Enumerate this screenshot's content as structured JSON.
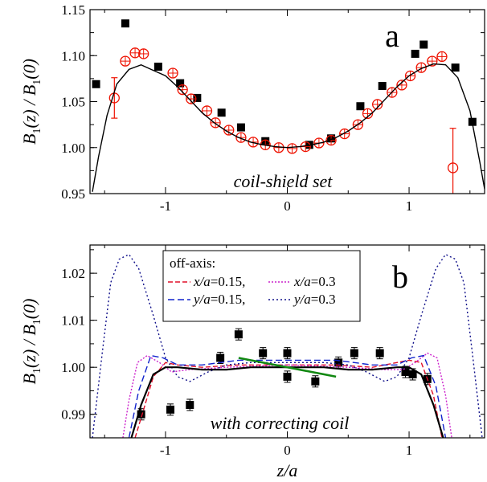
{
  "chart_data": [
    {
      "panel_label": "a",
      "type": "scatter",
      "annotation": "coil-shield set",
      "ylabel": "B1(z) / B1(0)",
      "xlabel": "",
      "xlim": [
        -1.62,
        1.62
      ],
      "ylim": [
        0.95,
        1.15
      ],
      "xticks": [
        -1,
        0,
        1
      ],
      "yticks": [
        0.95,
        1.0,
        1.05,
        1.1,
        1.15
      ],
      "ytick_labels": [
        "0.95",
        "1.00",
        "1.05",
        "1.10",
        "1.15"
      ],
      "grid": false,
      "series": [
        {
          "kind": "squares",
          "color": "#000000",
          "points": [
            [
              -1.57,
              1.069
            ],
            [
              -1.33,
              1.135
            ],
            [
              -1.06,
              1.088
            ],
            [
              -0.88,
              1.07
            ],
            [
              -0.74,
              1.054
            ],
            [
              -0.54,
              1.038
            ],
            [
              -0.38,
              1.022
            ],
            [
              -0.18,
              1.007
            ],
            [
              0.18,
              1.003
            ],
            [
              0.36,
              1.01
            ],
            [
              0.6,
              1.045
            ],
            [
              0.78,
              1.067
            ],
            [
              1.05,
              1.102
            ],
            [
              1.12,
              1.112
            ],
            [
              1.38,
              1.087
            ],
            [
              1.52,
              1.028
            ]
          ]
        },
        {
          "kind": "open-circles",
          "color": "#ee1100",
          "points": [
            [
              -1.42,
              1.054
            ],
            [
              -1.33,
              1.094
            ],
            [
              -1.25,
              1.103
            ],
            [
              -1.18,
              1.102
            ],
            [
              -0.94,
              1.081
            ],
            [
              -0.86,
              1.063
            ],
            [
              -0.79,
              1.053
            ],
            [
              -0.66,
              1.04
            ],
            [
              -0.59,
              1.027
            ],
            [
              -0.48,
              1.019
            ],
            [
              -0.38,
              1.011
            ],
            [
              -0.28,
              1.006
            ],
            [
              -0.18,
              1.003
            ],
            [
              -0.07,
              1.0
            ],
            [
              0.04,
              0.999
            ],
            [
              0.15,
              1.001
            ],
            [
              0.26,
              1.005
            ],
            [
              0.36,
              1.008
            ],
            [
              0.47,
              1.015
            ],
            [
              0.58,
              1.025
            ],
            [
              0.66,
              1.037
            ],
            [
              0.74,
              1.047
            ],
            [
              0.86,
              1.06
            ],
            [
              0.94,
              1.068
            ],
            [
              1.01,
              1.078
            ],
            [
              1.1,
              1.087
            ],
            [
              1.19,
              1.094
            ],
            [
              1.27,
              1.099
            ],
            [
              1.36,
              0.978
            ]
          ],
          "errorbars": [
            [
              -1.42,
              0.022
            ],
            [
              1.36,
              0.043
            ]
          ]
        },
        {
          "kind": "line",
          "color": "#000000",
          "points": [
            [
              -1.6,
              0.952
            ],
            [
              -1.55,
              0.99
            ],
            [
              -1.48,
              1.035
            ],
            [
              -1.4,
              1.069
            ],
            [
              -1.3,
              1.085
            ],
            [
              -1.2,
              1.09
            ],
            [
              -1.1,
              1.084
            ],
            [
              -1.0,
              1.078
            ],
            [
              -0.9,
              1.066
            ],
            [
              -0.8,
              1.052
            ],
            [
              -0.7,
              1.038
            ],
            [
              -0.6,
              1.027
            ],
            [
              -0.5,
              1.018
            ],
            [
              -0.4,
              1.011
            ],
            [
              -0.3,
              1.006
            ],
            [
              -0.2,
              1.003
            ],
            [
              -0.1,
              1.001
            ],
            [
              0.0,
              1.0
            ],
            [
              0.1,
              1.001
            ],
            [
              0.2,
              1.003
            ],
            [
              0.3,
              1.006
            ],
            [
              0.4,
              1.011
            ],
            [
              0.5,
              1.018
            ],
            [
              0.6,
              1.027
            ],
            [
              0.7,
              1.038
            ],
            [
              0.8,
              1.052
            ],
            [
              0.9,
              1.066
            ],
            [
              1.0,
              1.078
            ],
            [
              1.1,
              1.086
            ],
            [
              1.2,
              1.091
            ],
            [
              1.3,
              1.09
            ],
            [
              1.4,
              1.076
            ],
            [
              1.5,
              1.04
            ],
            [
              1.58,
              0.985
            ],
            [
              1.62,
              0.955
            ]
          ]
        }
      ]
    },
    {
      "panel_label": "b",
      "type": "scatter",
      "annotation": "with correcting coil",
      "ylabel": "B1(z) / B1(0)",
      "xlabel": "z/a",
      "xlim": [
        -1.62,
        1.62
      ],
      "ylim": [
        0.985,
        1.026
      ],
      "xticks": [
        -1,
        0,
        1
      ],
      "yticks": [
        0.99,
        1.0,
        1.01,
        1.02
      ],
      "ytick_labels": [
        "0.99",
        "1.00",
        "1.01",
        "1.02"
      ],
      "grid": false,
      "legend": {
        "title": "off-axis:",
        "placement": "top-left",
        "entries": [
          {
            "x_prefix": "x/a",
            "value": "=0.15,",
            "color": "#e0102a",
            "dash": "6,3"
          },
          {
            "x_prefix": "x/a",
            "value": "=0.3",
            "color": "#cc22cc",
            "dash": "2,2"
          },
          {
            "x_prefix": "y/a",
            "value": "=0.15,",
            "color": "#1022cc",
            "dash": "8,4"
          },
          {
            "x_prefix": "y/a",
            "value": "=0.3",
            "color": "#10108a",
            "dash": "2,3"
          }
        ]
      },
      "series": [
        {
          "kind": "squares",
          "color": "#000000",
          "points": [
            [
              -1.2,
              0.99
            ],
            [
              -0.96,
              0.991
            ],
            [
              -0.8,
              0.992
            ],
            [
              -0.55,
              1.002
            ],
            [
              -0.4,
              1.007
            ],
            [
              -0.2,
              1.003
            ],
            [
              0.0,
              1.003
            ],
            [
              0.0,
              0.998
            ],
            [
              0.23,
              0.997
            ],
            [
              0.42,
              1.001
            ],
            [
              0.55,
              1.003
            ],
            [
              0.76,
              1.003
            ],
            [
              0.97,
              0.999
            ],
            [
              1.03,
              0.9985
            ],
            [
              1.15,
              0.9975
            ]
          ],
          "errorbar": 0.0012
        },
        {
          "kind": "line",
          "name_ref": 0,
          "color": "#e0102a",
          "dash": "6,3",
          "points": [
            [
              -1.25,
              0.985
            ],
            [
              -1.18,
              0.991
            ],
            [
              -1.1,
              0.998
            ],
            [
              -1.0,
              1.001
            ],
            [
              -0.9,
              1.0005
            ],
            [
              -0.7,
              1.0
            ],
            [
              -0.4,
              1.0005
            ],
            [
              0.0,
              1.0005
            ],
            [
              0.4,
              1.0005
            ],
            [
              0.7,
              1.0
            ],
            [
              0.9,
              1.001
            ],
            [
              1.0,
              1.0015
            ],
            [
              1.1,
              1.001
            ],
            [
              1.2,
              0.994
            ],
            [
              1.27,
              0.985
            ]
          ]
        },
        {
          "kind": "line",
          "name_ref": 1,
          "color": "#cc22cc",
          "dash": "2,2",
          "points": [
            [
              -1.35,
              0.985
            ],
            [
              -1.3,
              0.993
            ],
            [
              -1.23,
              1.001
            ],
            [
              -1.15,
              1.0025
            ],
            [
              -1.05,
              1.001
            ],
            [
              -0.95,
              0.999
            ],
            [
              -0.8,
              0.9995
            ],
            [
              -0.5,
              1.0
            ],
            [
              0.0,
              1.0005
            ],
            [
              0.5,
              1.0
            ],
            [
              0.8,
              0.9995
            ],
            [
              0.95,
              0.9995
            ],
            [
              1.05,
              1.001
            ],
            [
              1.15,
              1.003
            ],
            [
              1.23,
              1.002
            ],
            [
              1.3,
              0.994
            ],
            [
              1.35,
              0.985
            ]
          ]
        },
        {
          "kind": "line",
          "name_ref": 2,
          "color": "#1022cc",
          "dash": "8,4",
          "points": [
            [
              -1.3,
              0.985
            ],
            [
              -1.22,
              0.995
            ],
            [
              -1.12,
              1.0025
            ],
            [
              -1.02,
              1.002
            ],
            [
              -0.9,
              1.0005
            ],
            [
              -0.7,
              1.0005
            ],
            [
              -0.4,
              1.0015
            ],
            [
              0.0,
              1.0015
            ],
            [
              0.4,
              1.0015
            ],
            [
              0.7,
              1.0005
            ],
            [
              0.9,
              1.0005
            ],
            [
              1.02,
              1.002
            ],
            [
              1.12,
              1.0025
            ],
            [
              1.22,
              0.996
            ],
            [
              1.3,
              0.985
            ]
          ]
        },
        {
          "kind": "line",
          "name_ref": 3,
          "color": "#10108a",
          "dash": "2,3",
          "points": [
            [
              -1.6,
              0.985
            ],
            [
              -1.52,
              1.003
            ],
            [
              -1.45,
              1.018
            ],
            [
              -1.38,
              1.023
            ],
            [
              -1.3,
              1.024
            ],
            [
              -1.22,
              1.021
            ],
            [
              -1.1,
              1.011
            ],
            [
              -1.0,
              1.002
            ],
            [
              -0.9,
              0.998
            ],
            [
              -0.8,
              0.997
            ],
            [
              -0.65,
              0.999
            ],
            [
              -0.5,
              1.0005
            ],
            [
              -0.3,
              1.001
            ],
            [
              0.0,
              1.001
            ],
            [
              0.3,
              1.001
            ],
            [
              0.5,
              1.0005
            ],
            [
              0.65,
              0.999
            ],
            [
              0.8,
              0.997
            ],
            [
              0.9,
              0.998
            ],
            [
              1.0,
              1.002
            ],
            [
              1.1,
              1.011
            ],
            [
              1.22,
              1.021
            ],
            [
              1.3,
              1.024
            ],
            [
              1.38,
              1.023
            ],
            [
              1.45,
              1.018
            ],
            [
              1.52,
              1.003
            ],
            [
              1.6,
              0.985
            ]
          ]
        },
        {
          "kind": "line",
          "color": "#000000",
          "width": 2.2,
          "points": [
            [
              -1.28,
              0.985
            ],
            [
              -1.2,
              0.992
            ],
            [
              -1.1,
              0.9985
            ],
            [
              -1.0,
              1.0
            ],
            [
              -0.9,
              1.0
            ],
            [
              -0.7,
              0.9995
            ],
            [
              -0.5,
              0.9995
            ],
            [
              -0.3,
              1.0
            ],
            [
              0.0,
              1.0
            ],
            [
              0.3,
              1.0
            ],
            [
              0.5,
              0.9995
            ],
            [
              0.7,
              0.9995
            ],
            [
              0.9,
              1.0
            ],
            [
              1.0,
              1.0
            ],
            [
              1.1,
              0.9985
            ],
            [
              1.2,
              0.992
            ],
            [
              1.28,
              0.985
            ]
          ]
        },
        {
          "kind": "line",
          "color": "#118811",
          "width": 2.6,
          "points": [
            [
              -0.4,
              1.002
            ],
            [
              0.4,
              0.998
            ]
          ]
        }
      ]
    }
  ]
}
